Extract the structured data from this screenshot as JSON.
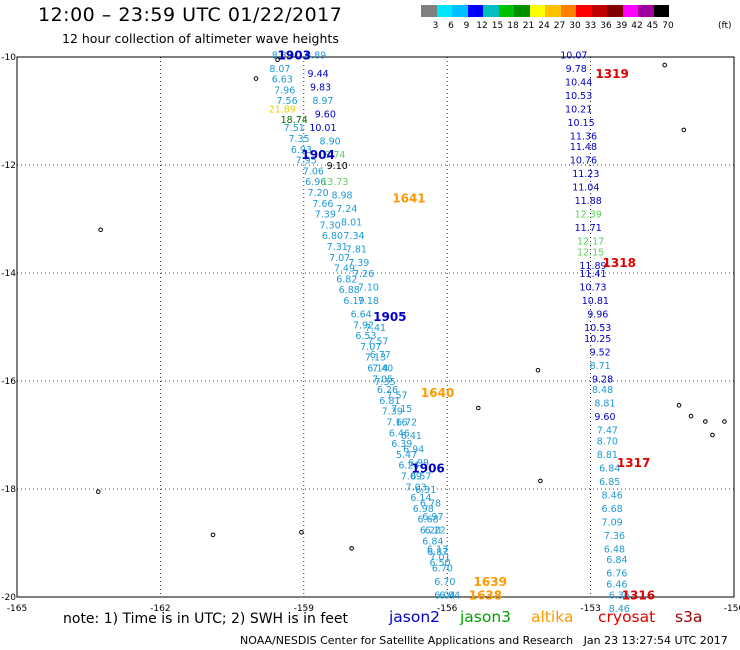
{
  "title": "12:00 – 23:59 UTC 01/22/2017",
  "subtitle": "12 hour collection of altimeter wave heights",
  "note": "note: 1) Time is in UTC; 2) SWH is in feet",
  "footer": "NOAA/NESDIS Center for Satellite Applications and Research   Jan 23 13:27:54 UTC 2017",
  "satellites": [
    {
      "name": "jason2",
      "color": "#0000cc"
    },
    {
      "name": "jason3",
      "color": "#00a000"
    },
    {
      "name": "altika",
      "color": "#ff9900"
    },
    {
      "name": "cryosat",
      "color": "#e00000"
    },
    {
      "name": "s3a",
      "color": "#990000"
    }
  ],
  "legend": {
    "unit": "(ft)",
    "colors": [
      "#808080",
      "#00e5ff",
      "#00bfff",
      "#0000ff",
      "#00bfbf",
      "#00c000",
      "#009000",
      "#ffff00",
      "#ffc000",
      "#ff8000",
      "#ff0000",
      "#c00000",
      "#800000",
      "#ff00ff",
      "#a000a0",
      "#000000"
    ],
    "labels": [
      "3",
      "6",
      "9",
      "12",
      "15",
      "18",
      "21",
      "24",
      "27",
      "30",
      "33",
      "36",
      "39",
      "42",
      "45",
      "70"
    ]
  },
  "map": {
    "lon_ticks": [
      {
        "value": -165,
        "label": "-165"
      },
      {
        "value": -162,
        "label": "-162"
      },
      {
        "value": -159,
        "label": "-159"
      },
      {
        "value": -156,
        "label": "-156"
      },
      {
        "value": -153,
        "label": "-153"
      },
      {
        "value": -150,
        "label": "-150"
      }
    ],
    "lat_ticks": [
      {
        "value": -10,
        "label": "-10"
      },
      {
        "value": -12,
        "label": "-12"
      },
      {
        "value": -14,
        "label": "-14"
      },
      {
        "value": -16,
        "label": "-16"
      },
      {
        "value": -18,
        "label": "-18"
      },
      {
        "value": -20,
        "label": "-20"
      }
    ],
    "lon_range": [
      -165,
      -150
    ],
    "lat_range": [
      -10,
      -20
    ]
  },
  "track_labels": [
    {
      "text": "1903",
      "lon": -159.2,
      "lat": -9.95,
      "color": "#0000cc"
    },
    {
      "text": "1904",
      "lon": -158.7,
      "lat": -11.8,
      "color": "#0000cc"
    },
    {
      "text": "1905",
      "lon": -157.2,
      "lat": -14.8,
      "color": "#0000cc"
    },
    {
      "text": "1906",
      "lon": -156.4,
      "lat": -17.6,
      "color": "#0000cc"
    },
    {
      "text": "1641",
      "lon": -156.8,
      "lat": -12.6,
      "color": "#ff9900"
    },
    {
      "text": "1640",
      "lon": -156.2,
      "lat": -16.2,
      "color": "#ff9900"
    },
    {
      "text": "1639",
      "lon": -155.1,
      "lat": -19.7,
      "color": "#ff9900"
    },
    {
      "text": "1638",
      "lon": -155.2,
      "lat": -19.95,
      "color": "#ff9900"
    },
    {
      "text": "1319",
      "lon": -152.55,
      "lat": -10.3,
      "color": "#e00000"
    },
    {
      "text": "1318",
      "lon": -152.4,
      "lat": -13.8,
      "color": "#e00000"
    },
    {
      "text": "1317",
      "lon": -152.1,
      "lat": -17.5,
      "color": "#e00000"
    },
    {
      "text": "1316",
      "lon": -152.0,
      "lat": -19.95,
      "color": "#e00000"
    }
  ],
  "observations": [
    {
      "v": "8.37",
      "lon": -159.45,
      "lat": -9.95,
      "c": "#1e9ad8"
    },
    {
      "v": "8.07",
      "lon": -159.5,
      "lat": -10.2,
      "c": "#1e9ad8"
    },
    {
      "v": "6.63",
      "lon": -159.45,
      "lat": -10.4,
      "c": "#1e9ad8"
    },
    {
      "v": "7.96",
      "lon": -159.4,
      "lat": -10.6,
      "c": "#1e9ad8"
    },
    {
      "v": "7.56",
      "lon": -159.35,
      "lat": -10.8,
      "c": "#1e9ad8"
    },
    {
      "v": "21.89",
      "lon": -159.45,
      "lat": -10.95,
      "c": "#e6d000"
    },
    {
      "v": "18.74",
      "lon": -159.2,
      "lat": -11.15,
      "c": "#007000"
    },
    {
      "v": "7.51",
      "lon": -159.2,
      "lat": -11.3,
      "c": "#1e9ad8"
    },
    {
      "v": "7.35",
      "lon": -159.1,
      "lat": -11.5,
      "c": "#1e9ad8"
    },
    {
      "v": "6.93",
      "lon": -159.05,
      "lat": -11.7,
      "c": "#1e9ad8"
    },
    {
      "v": "7.95",
      "lon": -158.95,
      "lat": -11.9,
      "c": "#1e9ad8"
    },
    {
      "v": "7.06",
      "lon": -158.8,
      "lat": -12.1,
      "c": "#1e9ad8"
    },
    {
      "v": "6.96",
      "lon": -158.75,
      "lat": -12.3,
      "c": "#1e9ad8"
    },
    {
      "v": "7.20",
      "lon": -158.7,
      "lat": -12.5,
      "c": "#1e9ad8"
    },
    {
      "v": "7.66",
      "lon": -158.6,
      "lat": -12.7,
      "c": "#1e9ad8"
    },
    {
      "v": "7.39",
      "lon": -158.55,
      "lat": -12.9,
      "c": "#1e9ad8"
    },
    {
      "v": "7.30",
      "lon": -158.45,
      "lat": -13.1,
      "c": "#1e9ad8"
    },
    {
      "v": "6.80",
      "lon": -158.4,
      "lat": -13.3,
      "c": "#1e9ad8"
    },
    {
      "v": "7.31",
      "lon": -158.3,
      "lat": -13.5,
      "c": "#1e9ad8"
    },
    {
      "v": "7.07",
      "lon": -158.25,
      "lat": -13.7,
      "c": "#1e9ad8"
    },
    {
      "v": "7.49",
      "lon": -158.15,
      "lat": -13.9,
      "c": "#1e9ad8"
    },
    {
      "v": "6.82",
      "lon": -158.1,
      "lat": -14.1,
      "c": "#1e9ad8"
    },
    {
      "v": "6.88",
      "lon": -158.05,
      "lat": -14.3,
      "c": "#1e9ad8"
    },
    {
      "v": "6.19",
      "lon": -157.95,
      "lat": -14.5,
      "c": "#1e9ad8"
    },
    {
      "v": "6.64",
      "lon": -157.8,
      "lat": -14.75,
      "c": "#1e9ad8"
    },
    {
      "v": "7.92",
      "lon": -157.75,
      "lat": -14.95,
      "c": "#1e9ad8"
    },
    {
      "v": "6.53",
      "lon": -157.7,
      "lat": -15.15,
      "c": "#1e9ad8"
    },
    {
      "v": "7.07",
      "lon": -157.6,
      "lat": -15.35,
      "c": "#1e9ad8"
    },
    {
      "v": "7.13",
      "lon": -157.5,
      "lat": -15.55,
      "c": "#1e9ad8"
    },
    {
      "v": "6.14",
      "lon": -157.45,
      "lat": -15.75,
      "c": "#1e9ad8"
    },
    {
      "v": "7.05",
      "lon": -157.35,
      "lat": -15.95,
      "c": "#1e9ad8"
    },
    {
      "v": "6.26",
      "lon": -157.25,
      "lat": -16.15,
      "c": "#1e9ad8"
    },
    {
      "v": "6.81",
      "lon": -157.2,
      "lat": -16.35,
      "c": "#1e9ad8"
    },
    {
      "v": "7.39",
      "lon": -157.15,
      "lat": -16.55,
      "c": "#1e9ad8"
    },
    {
      "v": "7.16",
      "lon": -157.05,
      "lat": -16.75,
      "c": "#1e9ad8"
    },
    {
      "v": "6.46",
      "lon": -157.0,
      "lat": -16.95,
      "c": "#1e9ad8"
    },
    {
      "v": "6.39",
      "lon": -156.95,
      "lat": -17.15,
      "c": "#1e9ad8"
    },
    {
      "v": "5.47",
      "lon": -156.85,
      "lat": -17.35,
      "c": "#1e9ad8"
    },
    {
      "v": "6.24",
      "lon": -156.8,
      "lat": -17.55,
      "c": "#1e9ad8"
    },
    {
      "v": "7.09",
      "lon": -156.75,
      "lat": -17.75,
      "c": "#1e9ad8"
    },
    {
      "v": "7.03",
      "lon": -156.65,
      "lat": -17.95,
      "c": "#1e9ad8"
    },
    {
      "v": "6.14",
      "lon": -156.55,
      "lat": -18.15,
      "c": "#1e9ad8"
    },
    {
      "v": "6.98",
      "lon": -156.5,
      "lat": -18.35,
      "c": "#1e9ad8"
    },
    {
      "v": "6.68",
      "lon": -156.4,
      "lat": -18.55,
      "c": "#1e9ad8"
    },
    {
      "v": "6.20",
      "lon": -156.35,
      "lat": -18.75,
      "c": "#1e9ad8"
    },
    {
      "v": "6.84",
      "lon": -156.3,
      "lat": -18.95,
      "c": "#1e9ad8"
    },
    {
      "v": "6.87",
      "lon": -156.2,
      "lat": -19.15,
      "c": "#1e9ad8"
    },
    {
      "v": "6.50",
      "lon": -156.15,
      "lat": -19.35,
      "c": "#1e9ad8"
    },
    {
      "v": "6.70",
      "lon": -156.05,
      "lat": -19.7,
      "c": "#1e9ad8"
    },
    {
      "v": "6.04",
      "lon": -156.05,
      "lat": -19.95,
      "c": "#1e9ad8"
    },
    {
      "v": "8.89",
      "lon": -158.75,
      "lat": -9.95,
      "c": "#1e9ad8"
    },
    {
      "v": "9.44",
      "lon": -158.7,
      "lat": -10.3,
      "c": "#0000cc"
    },
    {
      "v": "9.83",
      "lon": -158.65,
      "lat": -10.55,
      "c": "#0000cc"
    },
    {
      "v": "8.97",
      "lon": -158.6,
      "lat": -10.8,
      "c": "#1e9ad8"
    },
    {
      "v": "9.60",
      "lon": -158.55,
      "lat": -11.05,
      "c": "#0000cc"
    },
    {
      "v": "10.01",
      "lon": -158.6,
      "lat": -11.3,
      "c": "#0000cc"
    },
    {
      "v": "8.90",
      "lon": -158.45,
      "lat": -11.55,
      "c": "#1e9ad8"
    },
    {
      "v": "8.74",
      "lon": -158.35,
      "lat": -11.8,
      "c": "#5ad25a"
    },
    {
      "v": "9.10",
      "lon": -158.3,
      "lat": -12.0,
      "c": "#000000"
    },
    {
      "v": "13.73",
      "lon": -158.35,
      "lat": -12.3,
      "c": "#5ad25a"
    },
    {
      "v": "8.98",
      "lon": -158.2,
      "lat": -12.55,
      "c": "#1e9ad8"
    },
    {
      "v": "7.24",
      "lon": -158.1,
      "lat": -12.8,
      "c": "#1e9ad8"
    },
    {
      "v": "8.01",
      "lon": -158.0,
      "lat": -13.05,
      "c": "#1e9ad8"
    },
    {
      "v": "7.34",
      "lon": -157.95,
      "lat": -13.3,
      "c": "#1e9ad8"
    },
    {
      "v": "7.81",
      "lon": -157.9,
      "lat": -13.55,
      "c": "#1e9ad8"
    },
    {
      "v": "7.39",
      "lon": -157.85,
      "lat": -13.8,
      "c": "#1e9ad8"
    },
    {
      "v": "7.26",
      "lon": -157.75,
      "lat": -14.0,
      "c": "#1e9ad8"
    },
    {
      "v": "7.10",
      "lon": -157.65,
      "lat": -14.25,
      "c": "#1e9ad8"
    },
    {
      "v": "7.18",
      "lon": -157.65,
      "lat": -14.5,
      "c": "#1e9ad8"
    },
    {
      "v": "7.41",
      "lon": -157.5,
      "lat": -15.0,
      "c": "#1e9ad8"
    },
    {
      "v": "7.57",
      "lon": -157.45,
      "lat": -15.25,
      "c": "#1e9ad8"
    },
    {
      "v": "6.77",
      "lon": -157.4,
      "lat": -15.5,
      "c": "#1e9ad8"
    },
    {
      "v": "7.40",
      "lon": -157.35,
      "lat": -15.75,
      "c": "#1e9ad8"
    },
    {
      "v": "7.35",
      "lon": -157.3,
      "lat": -16.0,
      "c": "#1e9ad8"
    },
    {
      "v": "7.57",
      "lon": -157.05,
      "lat": -16.25,
      "c": "#1e9ad8"
    },
    {
      "v": "7.15",
      "lon": -156.95,
      "lat": -16.5,
      "c": "#1e9ad8"
    },
    {
      "v": "6.72",
      "lon": -156.85,
      "lat": -16.75,
      "c": "#1e9ad8"
    },
    {
      "v": "6.41",
      "lon": -156.75,
      "lat": -17.0,
      "c": "#1e9ad8"
    },
    {
      "v": "6.94",
      "lon": -156.7,
      "lat": -17.25,
      "c": "#1e9ad8"
    },
    {
      "v": "6.99",
      "lon": -156.6,
      "lat": -17.5,
      "c": "#1e9ad8"
    },
    {
      "v": "6.57",
      "lon": -156.55,
      "lat": -17.75,
      "c": "#1e9ad8"
    },
    {
      "v": "6.31",
      "lon": -156.45,
      "lat": -18.0,
      "c": "#1e9ad8"
    },
    {
      "v": "6.78",
      "lon": -156.35,
      "lat": -18.25,
      "c": "#1e9ad8"
    },
    {
      "v": "6.97",
      "lon": -156.3,
      "lat": -18.5,
      "c": "#1e9ad8"
    },
    {
      "v": "6.22",
      "lon": -156.25,
      "lat": -18.75,
      "c": "#1e9ad8"
    },
    {
      "v": "6.13",
      "lon": -156.2,
      "lat": -19.1,
      "c": "#1e9ad8"
    },
    {
      "v": "7.01",
      "lon": -156.15,
      "lat": -19.25,
      "c": "#1e9ad8"
    },
    {
      "v": "6.70",
      "lon": -156.1,
      "lat": -19.45,
      "c": "#1e9ad8"
    },
    {
      "v": "6.84",
      "lon": -155.95,
      "lat": -19.95,
      "c": "#1e9ad8"
    },
    {
      "v": "10.07",
      "lon": -153.35,
      "lat": -9.95,
      "c": "#0000cc"
    },
    {
      "v": "9.78",
      "lon": -153.3,
      "lat": -10.2,
      "c": "#0000cc"
    },
    {
      "v": "10.44",
      "lon": -153.25,
      "lat": -10.45,
      "c": "#0000cc"
    },
    {
      "v": "10.53",
      "lon": -153.25,
      "lat": -10.7,
      "c": "#0000cc"
    },
    {
      "v": "10.21",
      "lon": -153.25,
      "lat": -10.95,
      "c": "#0000cc"
    },
    {
      "v": "10.15",
      "lon": -153.2,
      "lat": -11.2,
      "c": "#0000cc"
    },
    {
      "v": "11.36",
      "lon": -153.15,
      "lat": -11.45,
      "c": "#0000cc"
    },
    {
      "v": "11.48",
      "lon": -153.15,
      "lat": -11.65,
      "c": "#0000cc"
    },
    {
      "v": "10.76",
      "lon": -153.15,
      "lat": -11.9,
      "c": "#0000cc"
    },
    {
      "v": "11.23",
      "lon": -153.1,
      "lat": -12.15,
      "c": "#0000cc"
    },
    {
      "v": "11.04",
      "lon": -153.1,
      "lat": -12.4,
      "c": "#0000cc"
    },
    {
      "v": "11.88",
      "lon": -153.05,
      "lat": -12.65,
      "c": "#0000cc"
    },
    {
      "v": "12.39",
      "lon": -153.05,
      "lat": -12.9,
      "c": "#5ad25a"
    },
    {
      "v": "11.71",
      "lon": -153.05,
      "lat": -13.15,
      "c": "#0000cc"
    },
    {
      "v": "12.17",
      "lon": -153.0,
      "lat": -13.4,
      "c": "#5ad25a"
    },
    {
      "v": "12.15",
      "lon": -153.0,
      "lat": -13.6,
      "c": "#5ad25a"
    },
    {
      "v": "11.89",
      "lon": -152.95,
      "lat": -13.85,
      "c": "#0000cc"
    },
    {
      "v": "11.41",
      "lon": -152.95,
      "lat": -14.0,
      "c": "#0000cc"
    },
    {
      "v": "10.73",
      "lon": -152.95,
      "lat": -14.25,
      "c": "#0000cc"
    },
    {
      "v": "10.81",
      "lon": -152.9,
      "lat": -14.5,
      "c": "#0000cc"
    },
    {
      "v": "9.96",
      "lon": -152.85,
      "lat": -14.75,
      "c": "#0000cc"
    },
    {
      "v": "10.53",
      "lon": -152.85,
      "lat": -15.0,
      "c": "#0000cc"
    },
    {
      "v": "10.25",
      "lon": -152.85,
      "lat": -15.2,
      "c": "#0000cc"
    },
    {
      "v": "9.52",
      "lon": -152.8,
      "lat": -15.45,
      "c": "#0000cc"
    },
    {
      "v": "8.71",
      "lon": -152.8,
      "lat": -15.7,
      "c": "#1e9ad8"
    },
    {
      "v": "9.28",
      "lon": -152.75,
      "lat": -15.95,
      "c": "#0000cc"
    },
    {
      "v": "8.48",
      "lon": -152.75,
      "lat": -16.15,
      "c": "#1e9ad8"
    },
    {
      "v": "8.81",
      "lon": -152.7,
      "lat": -16.4,
      "c": "#1e9ad8"
    },
    {
      "v": "9.60",
      "lon": -152.7,
      "lat": -16.65,
      "c": "#0000cc"
    },
    {
      "v": "7.47",
      "lon": -152.65,
      "lat": -16.9,
      "c": "#1e9ad8"
    },
    {
      "v": "8.70",
      "lon": -152.65,
      "lat": -17.1,
      "c": "#1e9ad8"
    },
    {
      "v": "8.81",
      "lon": -152.65,
      "lat": -17.35,
      "c": "#1e9ad8"
    },
    {
      "v": "6.84",
      "lon": -152.6,
      "lat": -17.6,
      "c": "#1e9ad8"
    },
    {
      "v": "6.85",
      "lon": -152.6,
      "lat": -17.85,
      "c": "#1e9ad8"
    },
    {
      "v": "8.46",
      "lon": -152.55,
      "lat": -18.1,
      "c": "#1e9ad8"
    },
    {
      "v": "6.68",
      "lon": -152.55,
      "lat": -18.35,
      "c": "#1e9ad8"
    },
    {
      "v": "7.09",
      "lon": -152.55,
      "lat": -18.6,
      "c": "#1e9ad8"
    },
    {
      "v": "7.36",
      "lon": -152.5,
      "lat": -18.85,
      "c": "#1e9ad8"
    },
    {
      "v": "6.48",
      "lon": -152.5,
      "lat": -19.1,
      "c": "#1e9ad8"
    },
    {
      "v": "6.84",
      "lon": -152.45,
      "lat": -19.3,
      "c": "#1e9ad8"
    },
    {
      "v": "6.76",
      "lon": -152.45,
      "lat": -19.55,
      "c": "#1e9ad8"
    },
    {
      "v": "6.46",
      "lon": -152.45,
      "lat": -19.75,
      "c": "#1e9ad8"
    },
    {
      "v": "6.36",
      "lon": -152.4,
      "lat": -19.95,
      "c": "#1e9ad8"
    },
    {
      "v": "8.46",
      "lon": -152.4,
      "lat": -20.2,
      "c": "#1e9ad8"
    }
  ],
  "islands": [
    {
      "lon": -159.55,
      "lat": -10.05
    },
    {
      "lon": -160.0,
      "lat": -10.4
    },
    {
      "lon": -163.25,
      "lat": -13.2
    },
    {
      "lon": -158.0,
      "lat": -19.1
    },
    {
      "lon": -159.05,
      "lat": -18.8
    },
    {
      "lon": -154.1,
      "lat": -15.8
    },
    {
      "lon": -155.35,
      "lat": -16.5
    },
    {
      "lon": -154.05,
      "lat": -17.85
    },
    {
      "lon": -163.3,
      "lat": -18.05
    },
    {
      "lon": -160.9,
      "lat": -18.85
    },
    {
      "lon": -151.45,
      "lat": -10.15
    },
    {
      "lon": -151.05,
      "lat": -11.35
    },
    {
      "lon": -151.15,
      "lat": -16.45
    },
    {
      "lon": -150.9,
      "lat": -16.65
    },
    {
      "lon": -150.6,
      "lat": -16.75
    },
    {
      "lon": -150.45,
      "lat": -17.0
    },
    {
      "lon": -150.2,
      "lat": -16.75
    },
    {
      "lon": -149.7,
      "lat": -17.7
    }
  ]
}
